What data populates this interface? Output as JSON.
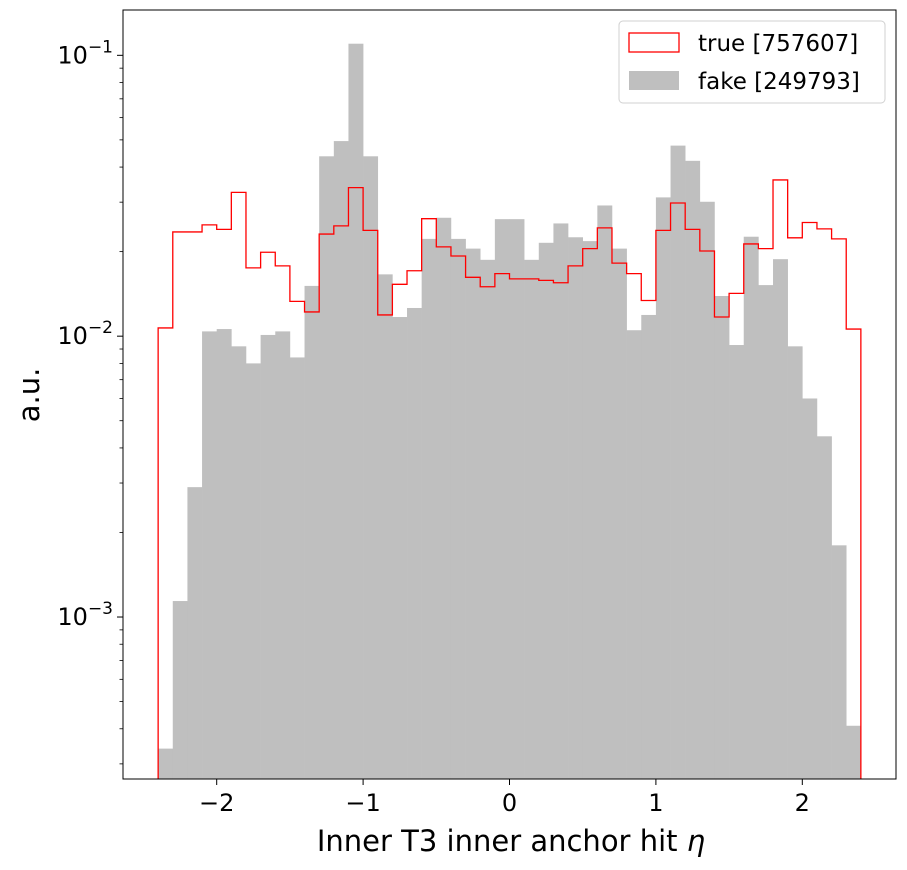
{
  "chart_data": {
    "type": "histogram",
    "title": "",
    "xlabel": "Inner T3 inner anchor hit",
    "xlabel_symbol": "η",
    "ylabel": "a.u.",
    "xlim": [
      -2.64,
      2.64
    ],
    "ylim": [
      0.000265,
      0.145
    ],
    "yscale": "log",
    "grid": false,
    "legend_position": "top-right",
    "x_ticks": [
      {
        "value": -2,
        "label": "−2"
      },
      {
        "value": -1,
        "label": "−1"
      },
      {
        "value": 0,
        "label": "0"
      },
      {
        "value": 1,
        "label": "1"
      },
      {
        "value": 2,
        "label": "2"
      }
    ],
    "y_ticks": [
      {
        "value": 0.001,
        "base": "10",
        "exp": "−3"
      },
      {
        "value": 0.01,
        "base": "10",
        "exp": "−2"
      },
      {
        "value": 0.1,
        "base": "10",
        "exp": "−1"
      }
    ],
    "bin_edges": [
      -2.4,
      -2.3,
      -2.2,
      -2.1,
      -2.0,
      -1.9,
      -1.8,
      -1.7,
      -1.6,
      -1.5,
      -1.4,
      -1.3,
      -1.2,
      -1.1,
      -1.0,
      -0.9,
      -0.8,
      -0.7,
      -0.6,
      -0.5,
      -0.4,
      -0.3,
      -0.2,
      -0.1,
      0.0,
      0.1,
      0.2,
      0.3,
      0.4,
      0.5,
      0.6,
      0.7,
      0.8,
      0.9,
      1.0,
      1.1,
      1.2,
      1.3,
      1.4,
      1.5,
      1.6,
      1.7,
      1.8,
      1.9,
      2.0,
      2.1,
      2.2,
      2.3,
      2.4
    ],
    "series": [
      {
        "name": "true [757607]",
        "style": "step",
        "color": "#ff0000",
        "values": [
          0.0107,
          0.0235,
          0.0235,
          0.0249,
          0.024,
          0.0325,
          0.0175,
          0.0199,
          0.0178,
          0.0133,
          0.0122,
          0.0231,
          0.0247,
          0.0338,
          0.0238,
          0.0119,
          0.0153,
          0.0171,
          0.0262,
          0.0208,
          0.0193,
          0.0162,
          0.015,
          0.0167,
          0.016,
          0.016,
          0.0158,
          0.0155,
          0.0178,
          0.0205,
          0.0243,
          0.0182,
          0.0167,
          0.0134,
          0.0238,
          0.0298,
          0.024,
          0.0201,
          0.0117,
          0.0142,
          0.0213,
          0.0205,
          0.036,
          0.0224,
          0.0254,
          0.0241,
          0.0222,
          0.0106
        ]
      },
      {
        "name": "fake [249793]",
        "style": "filled",
        "color": "#bfbfbf",
        "values": [
          0.00034,
          0.00114,
          0.0029,
          0.0104,
          0.0106,
          0.0092,
          0.008,
          0.0101,
          0.0104,
          0.0084,
          0.0151,
          0.0437,
          0.0495,
          0.11,
          0.0437,
          0.0166,
          0.0117,
          0.0126,
          0.0222,
          0.0264,
          0.0222,
          0.0205,
          0.0187,
          0.0261,
          0.0261,
          0.0187,
          0.0215,
          0.0252,
          0.0225,
          0.0218,
          0.0292,
          0.0205,
          0.0105,
          0.0119,
          0.0312,
          0.0477,
          0.0421,
          0.0301,
          0.0139,
          0.0093,
          0.0226,
          0.0152,
          0.0188,
          0.0092,
          0.006,
          0.0044,
          0.0018,
          0.00041
        ]
      }
    ]
  }
}
